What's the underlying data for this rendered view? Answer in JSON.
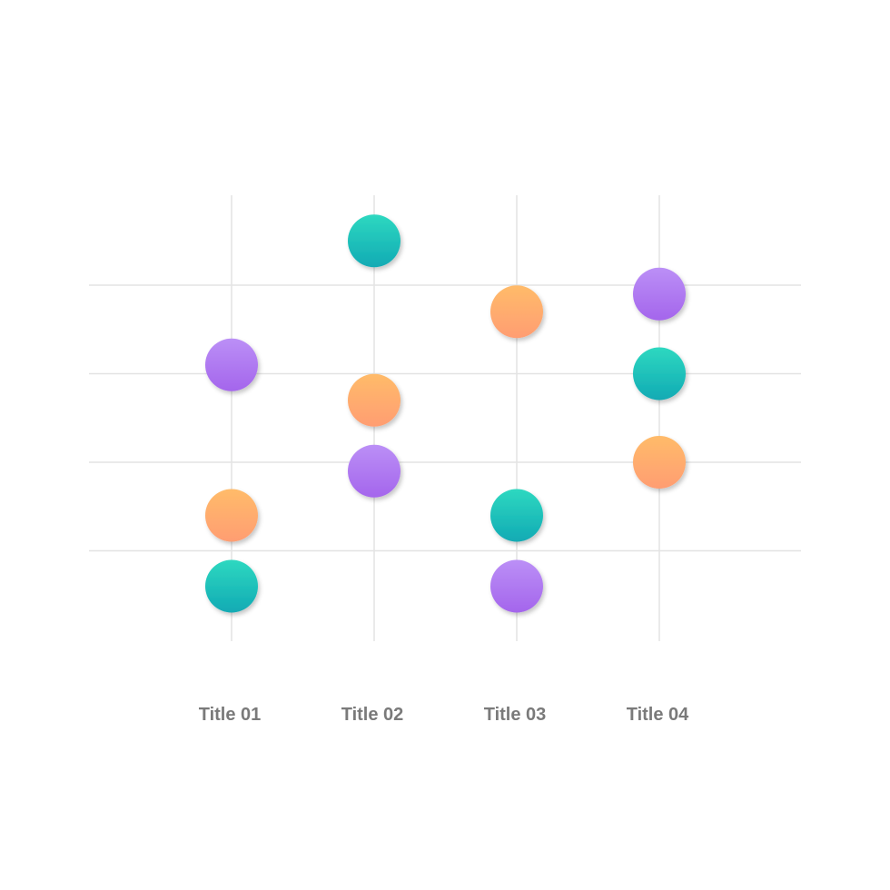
{
  "chart_data": {
    "type": "scatter",
    "title": "",
    "xlabel": "",
    "ylabel": "",
    "categories": [
      "Title 01",
      "Title 02",
      "Title 03",
      "Title 04"
    ],
    "ylim": [
      0,
      5
    ],
    "grid": true,
    "legend": "none",
    "series": [
      {
        "color": "#b07cf3",
        "values": [
          3.1,
          1.9,
          0.6,
          3.9
        ]
      },
      {
        "color": "#ffa66c",
        "values": [
          1.4,
          2.7,
          3.7,
          2.0
        ]
      },
      {
        "color": "#1cc0b8",
        "values": [
          0.6,
          4.5,
          1.4,
          3.0
        ]
      }
    ]
  },
  "colors": {
    "purple_top": "#bb8ff6",
    "purple_bottom": "#a465ec",
    "orange_top": "#ffbb6a",
    "orange_bottom": "#ff9d72",
    "teal_top": "#2ed8c0",
    "teal_bottom": "#11aab4",
    "grid": "#e3e3e3",
    "label": "#7a7a7a"
  }
}
